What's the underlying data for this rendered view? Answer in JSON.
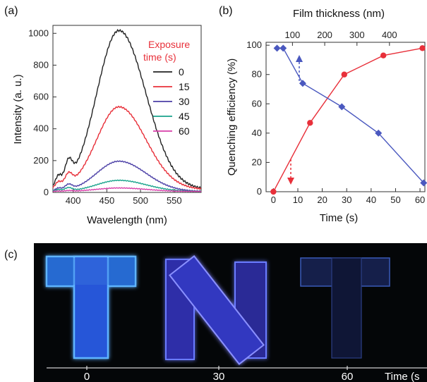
{
  "panel_labels": {
    "a": "(a)",
    "b": "(b)",
    "c": "(c)"
  },
  "chart_data": [
    {
      "type": "line",
      "panel": "a",
      "xlabel": "Wavelength (nm)",
      "ylabel": "Intensity (a. u.)",
      "xlim": [
        370,
        590
      ],
      "ylim": [
        0,
        1050
      ],
      "xticks": [
        "400",
        "450",
        "500",
        "550"
      ],
      "yticks": [
        "0",
        "200",
        "400",
        "600",
        "800",
        "1000"
      ],
      "legend_title_line1": "Exposure",
      "legend_title_line2": "time (s)",
      "legend_title_color": "#e8303a",
      "legend_position": "top-right",
      "series": [
        {
          "name": "0",
          "color": "#222222",
          "peak": 1000,
          "base": 0
        },
        {
          "name": "15",
          "color": "#e8303a",
          "peak": 520,
          "base": 0
        },
        {
          "name": "30",
          "color": "#4b3fa6",
          "peak": 190,
          "base": 0
        },
        {
          "name": "45",
          "color": "#1aa38c",
          "peak": 70,
          "base": 0
        },
        {
          "name": "60",
          "color": "#d83ea9",
          "peak": 22,
          "base": 0
        }
      ]
    },
    {
      "type": "line",
      "panel": "b",
      "xlabel": "Time (s)",
      "ylabel": "Quenching efficiency (%)",
      "top_xlabel": "Film thickness (nm)",
      "xlim": [
        -3,
        62
      ],
      "ylim": [
        0,
        102
      ],
      "xticks": [
        "0",
        "10",
        "20",
        "30",
        "40",
        "50",
        "60"
      ],
      "yticks": [
        "0",
        "20",
        "40",
        "60",
        "80",
        "100"
      ],
      "top_xticks": [
        "100",
        "200",
        "300",
        "400"
      ],
      "top_tick_positions": [
        7.8,
        21.0,
        34.2,
        47.5
      ],
      "series": [
        {
          "name": "quenching",
          "color": "#e8303a",
          "marker": "circle",
          "x": [
            0,
            15,
            29,
            45,
            61
          ],
          "y": [
            0,
            47,
            80,
            93,
            98
          ]
        },
        {
          "name": "thickness",
          "color": "#4a58bf",
          "marker": "diamond",
          "x": [
            1.5,
            4,
            12,
            28,
            43,
            61.5
          ],
          "y": [
            98,
            98,
            74,
            58,
            40,
            6
          ]
        }
      ]
    }
  ],
  "photo": {
    "axis_label": "Time (s",
    "tick_labels": [
      "0",
      "30",
      "60"
    ]
  }
}
